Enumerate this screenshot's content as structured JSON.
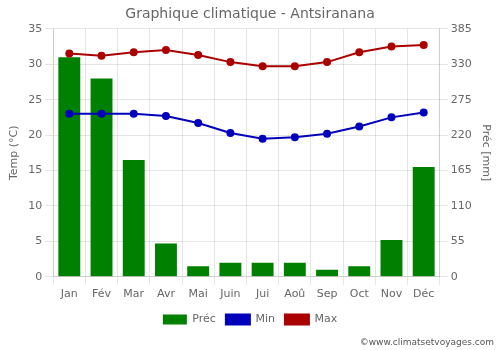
{
  "chart_data": {
    "type": "bar",
    "title": "Graphique climatique - Antsiranana",
    "categories": [
      "Jan",
      "Fév",
      "Mar",
      "Avr",
      "Mai",
      "Juin",
      "Jui",
      "Aoû",
      "Sep",
      "Oct",
      "Nov",
      "Déc"
    ],
    "series": [
      {
        "name": "Préc",
        "type": "bar",
        "color": "#008000",
        "values": [
          31.0,
          28.0,
          16.5,
          4.7,
          1.5,
          2.0,
          2.0,
          2.0,
          1.0,
          1.5,
          5.2,
          15.5
        ]
      },
      {
        "name": "Min",
        "type": "line",
        "axis": "y2",
        "color": "#0000bb",
        "marker": "circle",
        "values": [
          253,
          253,
          253,
          249.7,
          238.7,
          223.3,
          214.5,
          216.7,
          222.2,
          233.2,
          247.5,
          255.2
        ]
      },
      {
        "name": "Max",
        "type": "line",
        "axis": "y2",
        "color": "#aa0000",
        "marker": "circle",
        "values": [
          346.5,
          343.2,
          348.7,
          352,
          344.3,
          333.3,
          326.7,
          326.7,
          333.3,
          348.7,
          357.5,
          359.7
        ]
      }
    ],
    "ylabel": "Temp (°C)",
    "y2label": "Préc [mm]",
    "ylim": [
      0,
      35
    ],
    "yticks": [
      0,
      5,
      10,
      15,
      20,
      25,
      30,
      35
    ],
    "y2lim": [
      0,
      385
    ],
    "y2ticks": [
      0,
      55,
      110,
      165,
      220,
      275,
      330,
      385
    ],
    "grid": true,
    "legend": "bottom",
    "annotations": [
      "©www.climatsetvoyages.com"
    ]
  }
}
